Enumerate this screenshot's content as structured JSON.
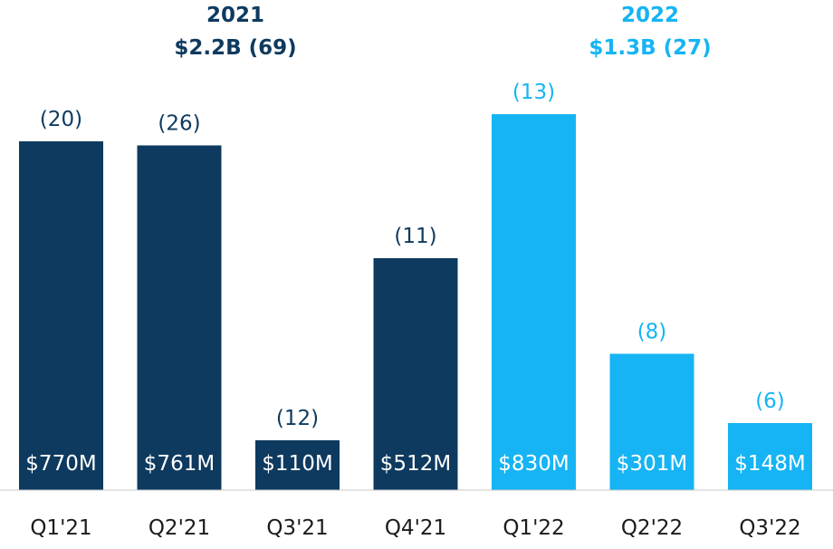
{
  "chart_data": {
    "type": "bar",
    "title": "",
    "xlabel": "",
    "ylabel": "",
    "ylim": [
      0,
      900
    ],
    "grid": false,
    "value_unit": "$M",
    "categories": [
      "Q1'21",
      "Q2'21",
      "Q3'21",
      "Q4'21",
      "Q1'22",
      "Q2'22",
      "Q3'22"
    ],
    "values": [
      770,
      761,
      110,
      512,
      830,
      301,
      148
    ],
    "value_labels": [
      "$770M",
      "$761M",
      "$110M",
      "$512M",
      "$830M",
      "$301M",
      "$148M"
    ],
    "counts": [
      20,
      26,
      12,
      11,
      13,
      8,
      6
    ],
    "count_labels": [
      "(20)",
      "(26)",
      "(12)",
      "(11)",
      "(13)",
      "(8)",
      "(6)"
    ],
    "groups": [
      {
        "year": "2021",
        "total": "$2.2B (69)",
        "color": "#0e3a5f",
        "categories": [
          "Q1'21",
          "Q2'21",
          "Q3'21",
          "Q4'21"
        ]
      },
      {
        "year": "2022",
        "total": "$1.3B (27)",
        "color": "#16b4f4",
        "categories": [
          "Q1'22",
          "Q2'22",
          "Q3'22"
        ]
      }
    ]
  }
}
